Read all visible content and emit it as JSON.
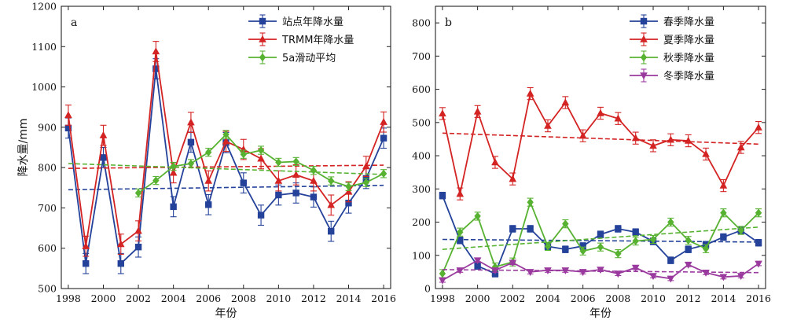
{
  "chart_data": [
    {
      "type": "line",
      "panel_label": "a",
      "xlabel": "年份",
      "ylabel": "降水量/mm",
      "xlim": [
        1997.6,
        2016.4
      ],
      "ylim": [
        500,
        1200
      ],
      "xticks": [
        1998,
        2000,
        2002,
        2004,
        2006,
        2008,
        2010,
        2012,
        2014,
        2016
      ],
      "yticks": [
        500,
        600,
        700,
        800,
        900,
        1000,
        1100,
        1200
      ],
      "legend_position": "top-right",
      "series": [
        {
          "name": "站点年降水量",
          "color": "#24429a",
          "marker": "square",
          "x": [
            1998,
            1999,
            2000,
            2001,
            2002,
            2003,
            2004,
            2005,
            2006,
            2007,
            2008,
            2009,
            2010,
            2011,
            2012,
            2013,
            2014,
            2015,
            2016
          ],
          "values": [
            898,
            562,
            825,
            562,
            603,
            1045,
            703,
            863,
            708,
            862,
            762,
            682,
            732,
            737,
            727,
            642,
            712,
            773,
            873
          ],
          "error": [
            25,
            25,
            25,
            25,
            25,
            25,
            25,
            25,
            25,
            25,
            25,
            25,
            25,
            25,
            25,
            25,
            25,
            25,
            25
          ],
          "trend": [
            745,
            756
          ]
        },
        {
          "name": "TRMM年降水量",
          "color": "#d42323",
          "marker": "triangle",
          "x": [
            1998,
            1999,
            2000,
            2001,
            2002,
            2003,
            2004,
            2005,
            2006,
            2007,
            2008,
            2009,
            2010,
            2011,
            2012,
            2013,
            2014,
            2015,
            2016
          ],
          "values": [
            930,
            605,
            880,
            610,
            643,
            1088,
            787,
            912,
            767,
            865,
            845,
            822,
            767,
            782,
            767,
            707,
            740,
            803,
            913
          ],
          "error": [
            25,
            25,
            25,
            25,
            25,
            25,
            25,
            25,
            25,
            25,
            25,
            25,
            25,
            25,
            25,
            25,
            25,
            25,
            25
          ],
          "trend": [
            798,
            806
          ]
        },
        {
          "name": "5a滑动平均",
          "color": "#58b232",
          "marker": "diamond",
          "x": [
            2002,
            2003,
            2004,
            2005,
            2006,
            2007,
            2008,
            2009,
            2010,
            2011,
            2012,
            2013,
            2014,
            2015,
            2016
          ],
          "values": [
            737,
            768,
            803,
            810,
            838,
            882,
            833,
            843,
            813,
            815,
            793,
            767,
            753,
            763,
            785
          ],
          "error": [
            10,
            10,
            10,
            10,
            10,
            10,
            10,
            10,
            10,
            10,
            10,
            10,
            10,
            10,
            10
          ],
          "trend": [
            810,
            783
          ]
        }
      ]
    },
    {
      "type": "line",
      "panel_label": "b",
      "xlabel": "年份",
      "ylabel": "",
      "xlim": [
        1997.6,
        2016.4
      ],
      "ylim": [
        0,
        850
      ],
      "xticks": [
        1998,
        2000,
        2002,
        2004,
        2006,
        2008,
        2010,
        2012,
        2014,
        2016
      ],
      "yticks": [
        0,
        100,
        200,
        300,
        400,
        500,
        600,
        700,
        800
      ],
      "legend_position": "top-right",
      "series": [
        {
          "name": "春季降水量",
          "color": "#24429a",
          "marker": "square",
          "x": [
            1998,
            1999,
            2000,
            2001,
            2002,
            2003,
            2004,
            2005,
            2006,
            2007,
            2008,
            2009,
            2010,
            2011,
            2012,
            2013,
            2014,
            2015,
            2016
          ],
          "values": [
            280,
            145,
            68,
            45,
            180,
            180,
            127,
            118,
            128,
            163,
            180,
            170,
            142,
            85,
            118,
            132,
            155,
            175,
            138
          ],
          "error": [
            10,
            10,
            10,
            10,
            10,
            10,
            10,
            10,
            10,
            10,
            10,
            10,
            10,
            10,
            10,
            10,
            10,
            10,
            10
          ],
          "trend": [
            148,
            140
          ]
        },
        {
          "name": "夏季降水量",
          "color": "#d42323",
          "marker": "triangle",
          "x": [
            1998,
            1999,
            2000,
            2001,
            2002,
            2003,
            2004,
            2005,
            2006,
            2007,
            2008,
            2009,
            2010,
            2011,
            2012,
            2013,
            2014,
            2015,
            2016
          ],
          "values": [
            527,
            285,
            533,
            380,
            330,
            587,
            490,
            560,
            460,
            528,
            512,
            453,
            430,
            448,
            445,
            405,
            310,
            425,
            485
          ],
          "error": [
            18,
            18,
            18,
            18,
            18,
            18,
            18,
            18,
            18,
            18,
            18,
            18,
            18,
            18,
            18,
            18,
            18,
            18,
            18
          ],
          "trend": [
            468,
            435
          ]
        },
        {
          "name": "秋季降水量",
          "color": "#58b232",
          "marker": "diamond",
          "x": [
            1998,
            1999,
            2000,
            2001,
            2002,
            2003,
            2004,
            2005,
            2006,
            2007,
            2008,
            2009,
            2010,
            2011,
            2012,
            2013,
            2014,
            2015,
            2016
          ],
          "values": [
            45,
            170,
            218,
            65,
            80,
            260,
            127,
            195,
            113,
            125,
            105,
            143,
            148,
            200,
            145,
            120,
            228,
            175,
            228
          ],
          "error": [
            12,
            12,
            12,
            12,
            12,
            12,
            12,
            12,
            12,
            12,
            12,
            12,
            12,
            12,
            12,
            12,
            12,
            12,
            12
          ],
          "trend": [
            118,
            185
          ]
        },
        {
          "name": "冬季降水量",
          "color": "#9a3a9e",
          "marker": "triangle-down",
          "x": [
            1998,
            1999,
            2000,
            2001,
            2002,
            2003,
            2004,
            2005,
            2006,
            2007,
            2008,
            2009,
            2010,
            2011,
            2012,
            2013,
            2014,
            2015,
            2016
          ],
          "values": [
            25,
            55,
            85,
            55,
            78,
            50,
            55,
            55,
            50,
            57,
            45,
            63,
            38,
            30,
            72,
            48,
            35,
            38,
            75
          ],
          "error": [
            6,
            6,
            6,
            6,
            6,
            6,
            6,
            6,
            6,
            6,
            6,
            6,
            6,
            6,
            6,
            6,
            6,
            6,
            6
          ],
          "trend": [
            57,
            48
          ]
        }
      ]
    }
  ]
}
